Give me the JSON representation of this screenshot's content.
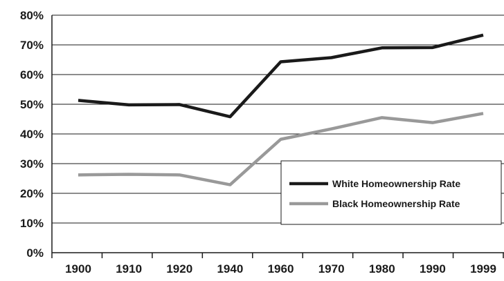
{
  "chart_data": {
    "type": "line",
    "categories": [
      "1900",
      "1910",
      "1920",
      "1940",
      "1960",
      "1970",
      "1980",
      "1990",
      "1999"
    ],
    "y_tick_labels": [
      "0%",
      "10%",
      "20%",
      "30%",
      "40%",
      "50%",
      "60%",
      "70%",
      "80%"
    ],
    "y_ticks": [
      0,
      10,
      20,
      30,
      40,
      50,
      60,
      70,
      80
    ],
    "ylim": [
      0,
      80
    ],
    "grid": true,
    "legend_position": "right",
    "series": [
      {
        "name": "White Homeownership Rate",
        "color": "#1a1a1a",
        "values": [
          51.3,
          49.8,
          49.9,
          45.8,
          64.3,
          65.7,
          69.0,
          69.1,
          73.3
        ]
      },
      {
        "name": "Black Homeownership Rate",
        "color": "#999999",
        "values": [
          26.2,
          26.4,
          26.2,
          22.9,
          38.2,
          41.7,
          45.5,
          43.8,
          46.9
        ]
      }
    ]
  }
}
